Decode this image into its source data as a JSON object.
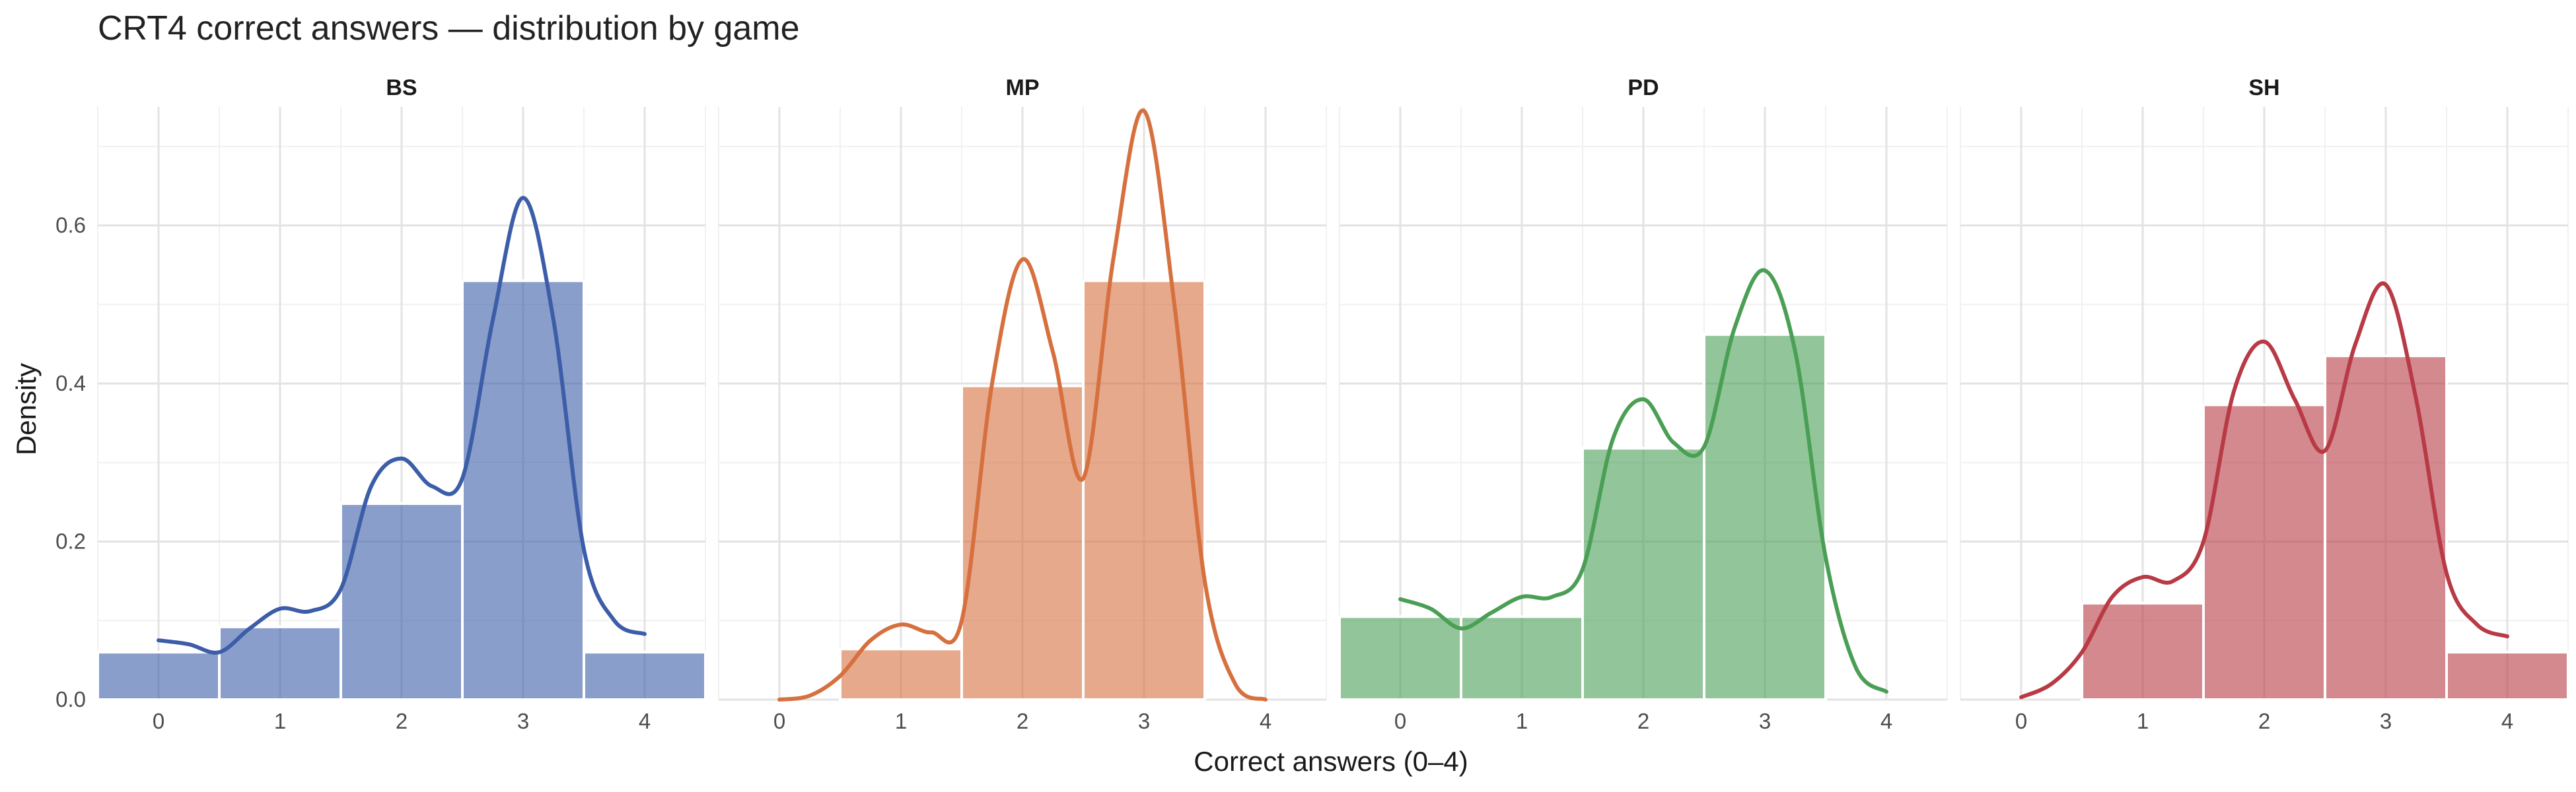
{
  "chart_data": {
    "type": "bar",
    "title": "CRT4 correct answers — distribution by game",
    "xlabel": "Correct answers (0–4)",
    "ylabel": "Density",
    "xlim": [
      -0.5,
      4.5
    ],
    "ylim": [
      0,
      0.75
    ],
    "x_ticks": [
      0,
      1,
      2,
      3,
      4
    ],
    "y_ticks": [
      0.0,
      0.2,
      0.4,
      0.6
    ],
    "y_tick_labels": [
      "0.0",
      "0.2",
      "0.4",
      "0.6"
    ],
    "grid": true,
    "legend": "none",
    "categories": [
      0,
      1,
      2,
      3,
      4
    ],
    "series": [
      {
        "name": "BS",
        "color": "#3c5da8",
        "values": [
          0.06,
          0.092,
          0.248,
          0.53,
          0.06
        ],
        "density_x": [
          0,
          0.25,
          0.5,
          0.75,
          1,
          1.25,
          1.5,
          1.75,
          2,
          2.25,
          2.5,
          2.75,
          3,
          3.25,
          3.5,
          3.75,
          4
        ],
        "density_y": [
          0.075,
          0.07,
          0.06,
          0.09,
          0.115,
          0.112,
          0.14,
          0.27,
          0.305,
          0.27,
          0.28,
          0.48,
          0.635,
          0.48,
          0.19,
          0.1,
          0.083
        ]
      },
      {
        "name": "MP",
        "color": "#d6703e",
        "values": [
          0,
          0.064,
          0.397,
          0.53,
          0
        ],
        "density_x": [
          0,
          0.25,
          0.5,
          0.75,
          1,
          1.25,
          1.5,
          1.75,
          2,
          2.25,
          2.5,
          2.75,
          3,
          3.25,
          3.5,
          3.75,
          4
        ],
        "density_y": [
          0.0,
          0.005,
          0.03,
          0.075,
          0.095,
          0.085,
          0.1,
          0.4,
          0.557,
          0.44,
          0.28,
          0.56,
          0.745,
          0.5,
          0.15,
          0.02,
          0.0
        ]
      },
      {
        "name": "PD",
        "color": "#4a9f55",
        "values": [
          0.105,
          0.105,
          0.318,
          0.462,
          0
        ],
        "density_x": [
          0,
          0.25,
          0.5,
          0.75,
          1,
          1.25,
          1.5,
          1.75,
          2,
          2.25,
          2.5,
          2.75,
          3,
          3.25,
          3.5,
          3.75,
          4
        ],
        "density_y": [
          0.127,
          0.115,
          0.09,
          0.11,
          0.13,
          0.13,
          0.165,
          0.33,
          0.38,
          0.325,
          0.32,
          0.47,
          0.543,
          0.44,
          0.18,
          0.04,
          0.01
        ]
      },
      {
        "name": "SH",
        "color": "#b83a45",
        "values": [
          0,
          0.122,
          0.373,
          0.435,
          0.06
        ],
        "density_x": [
          0,
          0.25,
          0.5,
          0.75,
          1,
          1.25,
          1.5,
          1.75,
          2,
          2.25,
          2.5,
          2.75,
          3,
          3.25,
          3.5,
          3.75,
          4
        ],
        "density_y": [
          0.003,
          0.02,
          0.06,
          0.13,
          0.155,
          0.15,
          0.2,
          0.39,
          0.453,
          0.38,
          0.315,
          0.45,
          0.525,
          0.38,
          0.16,
          0.095,
          0.08
        ]
      }
    ]
  }
}
